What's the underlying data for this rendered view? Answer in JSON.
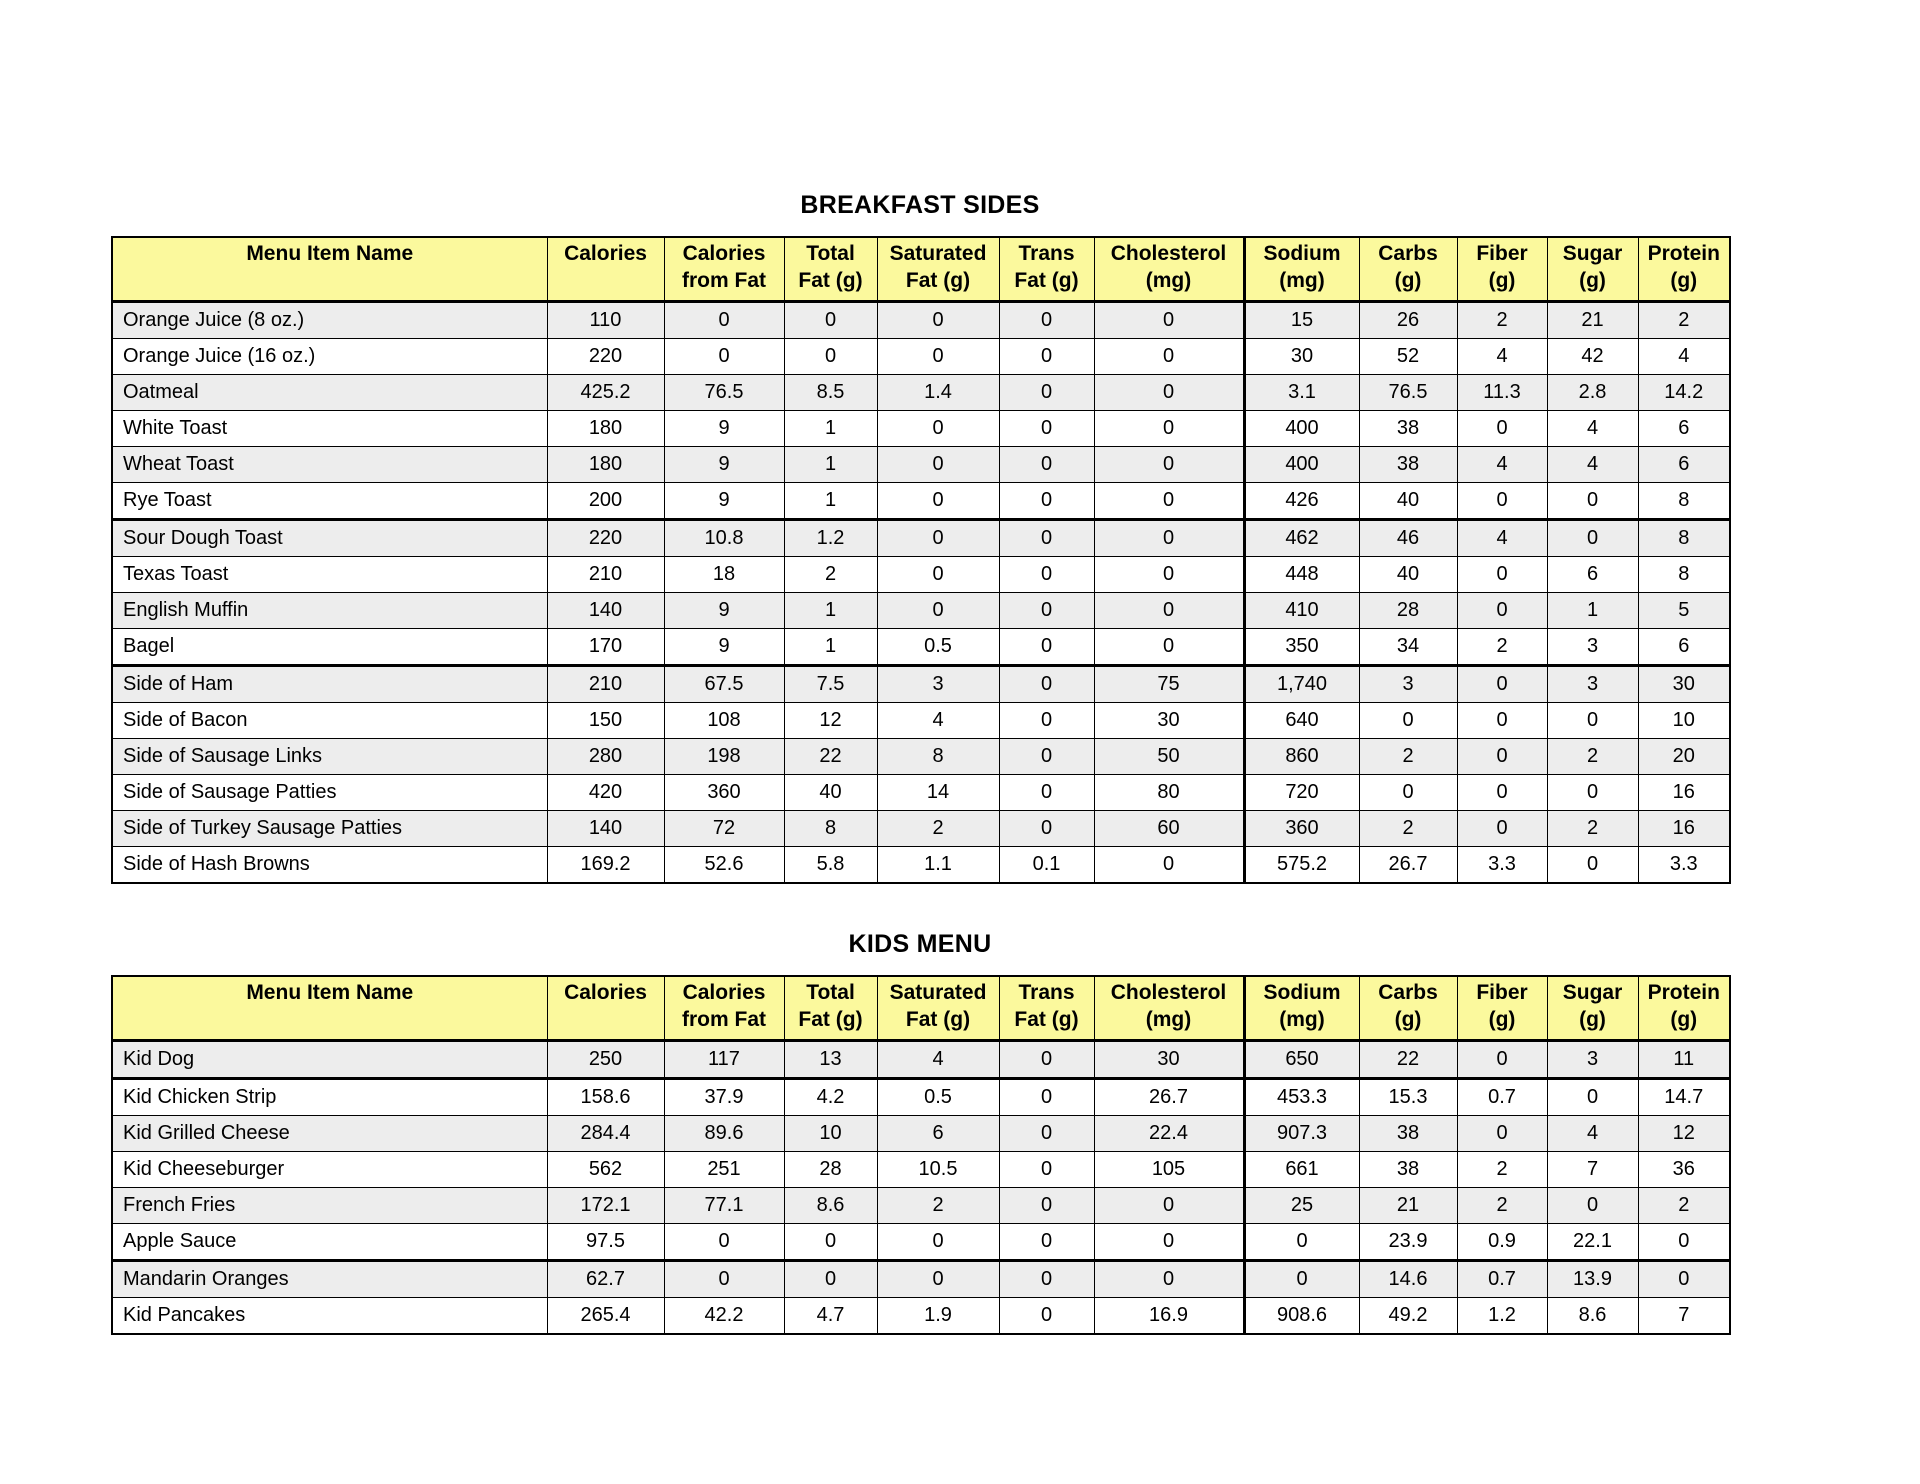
{
  "colors": {
    "page_bg": "#FFFFFF",
    "header_bg": "#FBF99D",
    "row_alt_bg": "#EDEDED",
    "row_bg": "#FFFFFF",
    "border": "#000000",
    "text": "#000000"
  },
  "columns": [
    {
      "line1": "Menu Item Name",
      "line2": ""
    },
    {
      "line1": "Calories",
      "line2": ""
    },
    {
      "line1": "Calories",
      "line2": "from Fat"
    },
    {
      "line1": "Total",
      "line2": "Fat (g)"
    },
    {
      "line1": "Saturated",
      "line2": "Fat (g)"
    },
    {
      "line1": "Trans",
      "line2": "Fat (g)"
    },
    {
      "line1": "Cholesterol",
      "line2": "(mg)"
    },
    {
      "line1": "Sodium",
      "line2": "(mg)"
    },
    {
      "line1": "Carbs",
      "line2": "(g)"
    },
    {
      "line1": "Fiber",
      "line2": "(g)"
    },
    {
      "line1": "Sugar",
      "line2": "(g)"
    },
    {
      "line1": "Protein",
      "line2": "(g)"
    }
  ],
  "tables": [
    {
      "title": "BREAKFAST SIDES",
      "thick_after_rows": [
        6,
        10
      ],
      "rows": [
        {
          "name": "Orange Juice (8 oz.)",
          "values": [
            "110",
            "0",
            "0",
            "0",
            "0",
            "0",
            "15",
            "26",
            "2",
            "21",
            "2"
          ]
        },
        {
          "name": "Orange Juice (16 oz.)",
          "values": [
            "220",
            "0",
            "0",
            "0",
            "0",
            "0",
            "30",
            "52",
            "4",
            "42",
            "4"
          ]
        },
        {
          "name": "Oatmeal",
          "values": [
            "425.2",
            "76.5",
            "8.5",
            "1.4",
            "0",
            "0",
            "3.1",
            "76.5",
            "11.3",
            "2.8",
            "14.2"
          ]
        },
        {
          "name": "White Toast",
          "values": [
            "180",
            "9",
            "1",
            "0",
            "0",
            "0",
            "400",
            "38",
            "0",
            "4",
            "6"
          ]
        },
        {
          "name": "Wheat Toast",
          "values": [
            "180",
            "9",
            "1",
            "0",
            "0",
            "0",
            "400",
            "38",
            "4",
            "4",
            "6"
          ]
        },
        {
          "name": "Rye Toast",
          "values": [
            "200",
            "9",
            "1",
            "0",
            "0",
            "0",
            "426",
            "40",
            "0",
            "0",
            "8"
          ]
        },
        {
          "name": "Sour Dough Toast",
          "values": [
            "220",
            "10.8",
            "1.2",
            "0",
            "0",
            "0",
            "462",
            "46",
            "4",
            "0",
            "8"
          ]
        },
        {
          "name": "Texas Toast",
          "values": [
            "210",
            "18",
            "2",
            "0",
            "0",
            "0",
            "448",
            "40",
            "0",
            "6",
            "8"
          ]
        },
        {
          "name": "English Muffin",
          "values": [
            "140",
            "9",
            "1",
            "0",
            "0",
            "0",
            "410",
            "28",
            "0",
            "1",
            "5"
          ]
        },
        {
          "name": "Bagel",
          "values": [
            "170",
            "9",
            "1",
            "0.5",
            "0",
            "0",
            "350",
            "34",
            "2",
            "3",
            "6"
          ]
        },
        {
          "name": "Side of Ham",
          "values": [
            "210",
            "67.5",
            "7.5",
            "3",
            "0",
            "75",
            "1,740",
            "3",
            "0",
            "3",
            "30"
          ]
        },
        {
          "name": "Side of Bacon",
          "values": [
            "150",
            "108",
            "12",
            "4",
            "0",
            "30",
            "640",
            "0",
            "0",
            "0",
            "10"
          ]
        },
        {
          "name": "Side of Sausage Links",
          "values": [
            "280",
            "198",
            "22",
            "8",
            "0",
            "50",
            "860",
            "2",
            "0",
            "2",
            "20"
          ]
        },
        {
          "name": "Side of Sausage Patties",
          "values": [
            "420",
            "360",
            "40",
            "14",
            "0",
            "80",
            "720",
            "0",
            "0",
            "0",
            "16"
          ]
        },
        {
          "name": "Side of Turkey Sausage Patties",
          "values": [
            "140",
            "72",
            "8",
            "2",
            "0",
            "60",
            "360",
            "2",
            "0",
            "2",
            "16"
          ]
        },
        {
          "name": "Side of Hash Browns",
          "values": [
            "169.2",
            "52.6",
            "5.8",
            "1.1",
            "0.1",
            "0",
            "575.2",
            "26.7",
            "3.3",
            "0",
            "3.3"
          ]
        }
      ]
    },
    {
      "title": "KIDS MENU",
      "thick_after_rows": [
        1,
        6
      ],
      "rows": [
        {
          "name": "Kid Dog",
          "values": [
            "250",
            "117",
            "13",
            "4",
            "0",
            "30",
            "650",
            "22",
            "0",
            "3",
            "11"
          ]
        },
        {
          "name": "Kid Chicken Strip",
          "values": [
            "158.6",
            "37.9",
            "4.2",
            "0.5",
            "0",
            "26.7",
            "453.3",
            "15.3",
            "0.7",
            "0",
            "14.7"
          ]
        },
        {
          "name": "Kid Grilled Cheese",
          "values": [
            "284.4",
            "89.6",
            "10",
            "6",
            "0",
            "22.4",
            "907.3",
            "38",
            "0",
            "4",
            "12"
          ]
        },
        {
          "name": "Kid Cheeseburger",
          "values": [
            "562",
            "251",
            "28",
            "10.5",
            "0",
            "105",
            "661",
            "38",
            "2",
            "7",
            "36"
          ]
        },
        {
          "name": "French Fries",
          "values": [
            "172.1",
            "77.1",
            "8.6",
            "2",
            "0",
            "0",
            "25",
            "21",
            "2",
            "0",
            "2"
          ]
        },
        {
          "name": "Apple Sauce",
          "values": [
            "97.5",
            "0",
            "0",
            "0",
            "0",
            "0",
            "0",
            "23.9",
            "0.9",
            "22.1",
            "0"
          ]
        },
        {
          "name": "Mandarin Oranges",
          "values": [
            "62.7",
            "0",
            "0",
            "0",
            "0",
            "0",
            "0",
            "14.6",
            "0.7",
            "13.9",
            "0"
          ]
        },
        {
          "name": "Kid Pancakes",
          "values": [
            "265.4",
            "42.2",
            "4.7",
            "1.9",
            "0",
            "16.9",
            "908.6",
            "49.2",
            "1.2",
            "8.6",
            "7"
          ]
        }
      ]
    }
  ]
}
